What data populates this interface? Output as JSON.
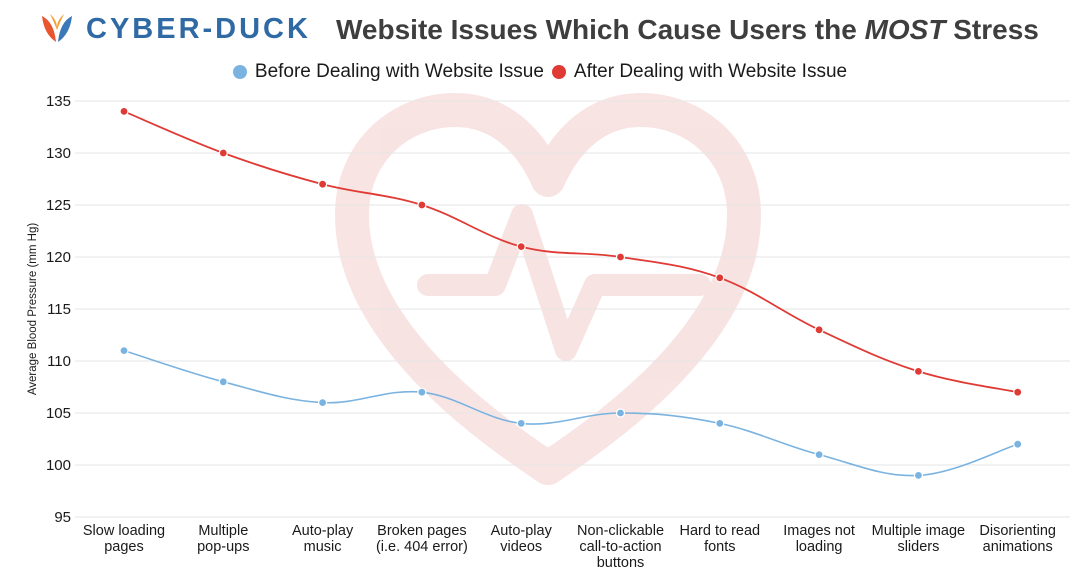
{
  "brand": {
    "name": "CYBER-DUCK",
    "colors": {
      "text": "#2f6aa5",
      "mark_left": "#e8552f",
      "mark_right": "#3a78b8"
    }
  },
  "title": {
    "prefix": "Website Issues Which Cause Users the ",
    "emphasis": "MOST",
    "suffix": " Stress"
  },
  "chart_data": {
    "type": "line",
    "categories": [
      "Slow loading\npages",
      "Multiple\npop-ups",
      "Auto-play\nmusic",
      "Broken pages\n(i.e. 404 error)",
      "Auto-play\nvideos",
      "Non-clickable\ncall-to-action\nbuttons",
      "Hard to read\nfonts",
      "Images not\nloading",
      "Multiple image\nsliders",
      "Disorienting\nanimations"
    ],
    "series": [
      {
        "name": "Before Dealing with Website Issue",
        "color": "#7ab3e0",
        "values": [
          111,
          108,
          106,
          107,
          104,
          105,
          104,
          101,
          99,
          102
        ]
      },
      {
        "name": "After Dealing with Website Issue",
        "color": "#e03a35",
        "values": [
          134,
          130,
          127,
          125,
          121,
          120,
          118,
          113,
          109,
          107
        ]
      }
    ],
    "ylabel": "Average Blood Pressure (mm Hg)",
    "xlabel": "",
    "ylim": [
      95,
      135
    ],
    "yticks": [
      95,
      100,
      105,
      110,
      115,
      120,
      125,
      130,
      135
    ],
    "grid": true,
    "legend_position": "top-center",
    "watermark": "heart-with-pulse"
  }
}
